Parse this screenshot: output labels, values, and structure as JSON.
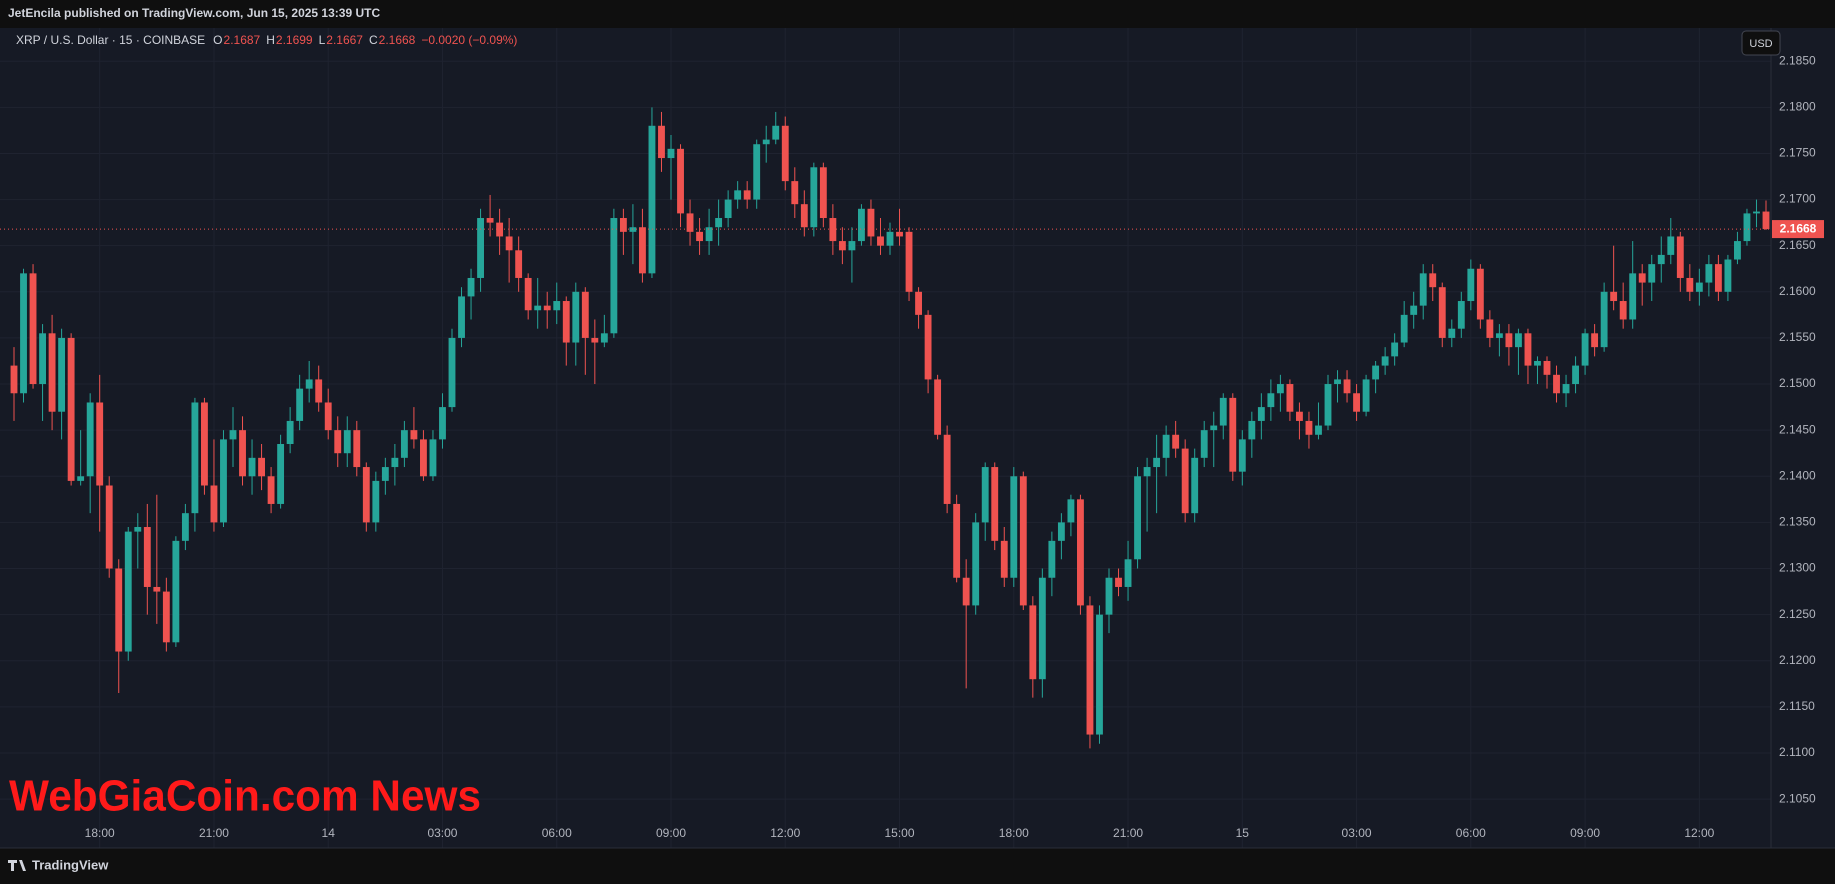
{
  "header": {
    "publisher": "JetEncila published on TradingView.com, Jun 15, 2025 13:39 UTC",
    "brand": "TradingView",
    "currency": "USD",
    "watermark": "WebGiaCoin.com News"
  },
  "chart_data": {
    "type": "candlestick",
    "symbol": "XRP / U.S. Dollar · 15 · COINBASE",
    "ohlc_letters": [
      "O",
      "H",
      "L",
      "C"
    ],
    "change": "−0.0020 (−0.09%)",
    "up_color": "#26a69a",
    "down_color": "#ef5350",
    "grid": true,
    "ylim": [
      2.0997,
      2.1886
    ],
    "yticks": [
      {
        "value": 2.105,
        "label": "2.1050"
      },
      {
        "value": 2.11,
        "label": "2.1100"
      },
      {
        "value": 2.115,
        "label": "2.1150"
      },
      {
        "value": 2.12,
        "label": "2.1200"
      },
      {
        "value": 2.125,
        "label": "2.1250"
      },
      {
        "value": 2.13,
        "label": "2.1300"
      },
      {
        "value": 2.135,
        "label": "2.1350"
      },
      {
        "value": 2.14,
        "label": "2.1400"
      },
      {
        "value": 2.145,
        "label": "2.1450"
      },
      {
        "value": 2.15,
        "label": "2.1500"
      },
      {
        "value": 2.155,
        "label": "2.1550"
      },
      {
        "value": 2.16,
        "label": "2.1600"
      },
      {
        "value": 2.165,
        "label": "2.1650"
      },
      {
        "value": 2.17,
        "label": "2.1700"
      },
      {
        "value": 2.175,
        "label": "2.1750"
      },
      {
        "value": 2.18,
        "label": "2.1800"
      },
      {
        "value": 2.185,
        "label": "2.1850"
      }
    ],
    "categories": [
      null,
      null,
      null,
      null,
      null,
      null,
      null,
      null,
      null,
      "18:00",
      null,
      null,
      null,
      null,
      null,
      null,
      null,
      null,
      null,
      null,
      null,
      "21:00",
      null,
      null,
      null,
      null,
      null,
      null,
      null,
      null,
      null,
      null,
      null,
      "14",
      null,
      null,
      null,
      null,
      null,
      null,
      null,
      null,
      null,
      null,
      null,
      "03:00",
      null,
      null,
      null,
      null,
      null,
      null,
      null,
      null,
      null,
      null,
      null,
      "06:00",
      null,
      null,
      null,
      null,
      null,
      null,
      null,
      null,
      null,
      null,
      null,
      "09:00",
      null,
      null,
      null,
      null,
      null,
      null,
      null,
      null,
      null,
      null,
      null,
      "12:00",
      null,
      null,
      null,
      null,
      null,
      null,
      null,
      null,
      null,
      null,
      null,
      "15:00",
      null,
      null,
      null,
      null,
      null,
      null,
      null,
      null,
      null,
      null,
      null,
      "18:00",
      null,
      null,
      null,
      null,
      null,
      null,
      null,
      null,
      null,
      null,
      null,
      "21:00",
      null,
      null,
      null,
      null,
      null,
      null,
      null,
      null,
      null,
      null,
      null,
      "15",
      null,
      null,
      null,
      null,
      null,
      null,
      null,
      null,
      null,
      null,
      null,
      "03:00",
      null,
      null,
      null,
      null,
      null,
      null,
      null,
      null,
      null,
      null,
      null,
      "06:00",
      null,
      null,
      null,
      null,
      null,
      null,
      null,
      null,
      null,
      null,
      null,
      "09:00",
      null,
      null,
      null,
      null,
      null,
      null,
      null,
      null,
      null,
      null,
      null,
      "12:00",
      null,
      null,
      null,
      null,
      null,
      null,
      null
    ],
    "ohlc": [
      [
        2.152,
        2.154,
        2.146,
        2.149
      ],
      [
        2.149,
        2.1625,
        2.148,
        2.162
      ],
      [
        2.162,
        2.163,
        2.1495,
        2.15
      ],
      [
        2.15,
        2.1565,
        2.146,
        2.1555
      ],
      [
        2.1555,
        2.1575,
        2.145,
        2.147
      ],
      [
        2.147,
        2.156,
        2.144,
        2.155
      ],
      [
        2.155,
        2.1555,
        2.139,
        2.1395
      ],
      [
        2.1395,
        2.145,
        2.139,
        2.14
      ],
      [
        2.14,
        2.149,
        2.136,
        2.148
      ],
      [
        2.148,
        2.151,
        2.134,
        2.139
      ],
      [
        2.139,
        2.14,
        2.129,
        2.13
      ],
      [
        2.13,
        2.131,
        2.1165,
        2.121
      ],
      [
        2.121,
        2.1345,
        2.12,
        2.134
      ],
      [
        2.134,
        2.136,
        2.13,
        2.1345
      ],
      [
        2.1345,
        2.137,
        2.125,
        2.128
      ],
      [
        2.128,
        2.138,
        2.124,
        2.1275
      ],
      [
        2.1275,
        2.129,
        2.121,
        2.122
      ],
      [
        2.122,
        2.1335,
        2.1215,
        2.133
      ],
      [
        2.133,
        2.137,
        2.132,
        2.136
      ],
      [
        2.136,
        2.1485,
        2.134,
        2.148
      ],
      [
        2.148,
        2.1485,
        2.138,
        2.139
      ],
      [
        2.139,
        2.144,
        2.134,
        2.135
      ],
      [
        2.135,
        2.145,
        2.1345,
        2.144
      ],
      [
        2.144,
        2.1475,
        2.141,
        2.145
      ],
      [
        2.145,
        2.1465,
        2.139,
        2.14
      ],
      [
        2.14,
        2.144,
        2.138,
        2.142
      ],
      [
        2.142,
        2.1435,
        2.1385,
        2.14
      ],
      [
        2.14,
        2.141,
        2.136,
        2.137
      ],
      [
        2.137,
        2.1445,
        2.1365,
        2.1435
      ],
      [
        2.1435,
        2.1475,
        2.1425,
        2.146
      ],
      [
        2.146,
        2.151,
        2.145,
        2.1495
      ],
      [
        2.1495,
        2.1525,
        2.148,
        2.1505
      ],
      [
        2.1505,
        2.152,
        2.147,
        2.148
      ],
      [
        2.148,
        2.1495,
        2.144,
        2.145
      ],
      [
        2.145,
        2.1465,
        2.141,
        2.1425
      ],
      [
        2.1425,
        2.1465,
        2.141,
        2.145
      ],
      [
        2.145,
        2.146,
        2.14,
        2.141
      ],
      [
        2.141,
        2.1415,
        2.134,
        2.135
      ],
      [
        2.135,
        2.1405,
        2.134,
        2.1395
      ],
      [
        2.1395,
        2.142,
        2.138,
        2.141
      ],
      [
        2.141,
        2.1435,
        2.139,
        2.142
      ],
      [
        2.142,
        2.146,
        2.141,
        2.145
      ],
      [
        2.145,
        2.1475,
        2.143,
        2.144
      ],
      [
        2.144,
        2.145,
        2.1395,
        2.14
      ],
      [
        2.14,
        2.145,
        2.1395,
        2.144
      ],
      [
        2.144,
        2.149,
        2.143,
        2.1475
      ],
      [
        2.1475,
        2.156,
        2.147,
        2.155
      ],
      [
        2.155,
        2.1605,
        2.154,
        2.1595
      ],
      [
        2.1595,
        2.1625,
        2.157,
        2.1615
      ],
      [
        2.1615,
        2.169,
        2.16,
        2.168
      ],
      [
        2.168,
        2.1705,
        2.166,
        2.1675
      ],
      [
        2.1675,
        2.169,
        2.164,
        2.166
      ],
      [
        2.166,
        2.168,
        2.161,
        2.1645
      ],
      [
        2.1645,
        2.166,
        2.16,
        2.1615
      ],
      [
        2.1615,
        2.162,
        2.157,
        2.158
      ],
      [
        2.158,
        2.1615,
        2.156,
        2.1585
      ],
      [
        2.1585,
        2.16,
        2.156,
        2.158
      ],
      [
        2.158,
        2.161,
        2.1565,
        2.159
      ],
      [
        2.159,
        2.1595,
        2.152,
        2.1545
      ],
      [
        2.1545,
        2.161,
        2.152,
        2.16
      ],
      [
        2.16,
        2.1605,
        2.151,
        2.155
      ],
      [
        2.155,
        2.157,
        2.15,
        2.1545
      ],
      [
        2.1545,
        2.1575,
        2.154,
        2.1555
      ],
      [
        2.1555,
        2.169,
        2.155,
        2.168
      ],
      [
        2.168,
        2.169,
        2.164,
        2.1665
      ],
      [
        2.1665,
        2.1695,
        2.163,
        2.167
      ],
      [
        2.167,
        2.169,
        2.161,
        2.162
      ],
      [
        2.162,
        2.18,
        2.1615,
        2.178
      ],
      [
        2.178,
        2.1795,
        2.173,
        2.1745
      ],
      [
        2.1745,
        2.177,
        2.17,
        2.1755
      ],
      [
        2.1755,
        2.176,
        2.167,
        2.1685
      ],
      [
        2.1685,
        2.17,
        2.165,
        2.1665
      ],
      [
        2.1665,
        2.168,
        2.164,
        2.1655
      ],
      [
        2.1655,
        2.169,
        2.164,
        2.167
      ],
      [
        2.167,
        2.17,
        2.165,
        2.168
      ],
      [
        2.168,
        2.171,
        2.167,
        2.17
      ],
      [
        2.17,
        2.172,
        2.169,
        2.171
      ],
      [
        2.171,
        2.172,
        2.169,
        2.17
      ],
      [
        2.17,
        2.1765,
        2.169,
        2.176
      ],
      [
        2.176,
        2.178,
        2.174,
        2.1765
      ],
      [
        2.1765,
        2.1795,
        2.176,
        2.178
      ],
      [
        2.178,
        2.179,
        2.171,
        2.172
      ],
      [
        2.172,
        2.1735,
        2.168,
        2.1695
      ],
      [
        2.1695,
        2.171,
        2.166,
        2.167
      ],
      [
        2.167,
        2.174,
        2.166,
        2.1735
      ],
      [
        2.1735,
        2.174,
        2.167,
        2.168
      ],
      [
        2.168,
        2.1695,
        2.164,
        2.1655
      ],
      [
        2.1655,
        2.167,
        2.163,
        2.1645
      ],
      [
        2.1645,
        2.167,
        2.161,
        2.1655
      ],
      [
        2.1655,
        2.1695,
        2.165,
        2.169
      ],
      [
        2.169,
        2.17,
        2.165,
        2.166
      ],
      [
        2.166,
        2.168,
        2.164,
        2.165
      ],
      [
        2.165,
        2.1675,
        2.164,
        2.1665
      ],
      [
        2.1665,
        2.169,
        2.165,
        2.166
      ],
      [
        2.1665,
        2.167,
        2.159,
        2.16
      ],
      [
        2.16,
        2.1605,
        2.156,
        2.1575
      ],
      [
        2.1575,
        2.158,
        2.149,
        2.1505
      ],
      [
        2.1505,
        2.151,
        2.144,
        2.1445
      ],
      [
        2.1445,
        2.1455,
        2.136,
        2.137
      ],
      [
        2.137,
        2.138,
        2.1285,
        2.129
      ],
      [
        2.129,
        2.131,
        2.117,
        2.126
      ],
      [
        2.126,
        2.136,
        2.125,
        2.135
      ],
      [
        2.135,
        2.1415,
        2.133,
        2.141
      ],
      [
        2.141,
        2.1415,
        2.132,
        2.133
      ],
      [
        2.133,
        2.1345,
        2.128,
        2.129
      ],
      [
        2.129,
        2.141,
        2.128,
        2.14
      ],
      [
        2.14,
        2.1405,
        2.1255,
        2.126
      ],
      [
        2.126,
        2.127,
        2.116,
        2.118
      ],
      [
        2.118,
        2.13,
        2.116,
        2.129
      ],
      [
        2.129,
        2.134,
        2.127,
        2.133
      ],
      [
        2.133,
        2.136,
        2.131,
        2.135
      ],
      [
        2.135,
        2.138,
        2.1335,
        2.1375
      ],
      [
        2.1375,
        2.138,
        2.125,
        2.126
      ],
      [
        2.126,
        2.127,
        2.1105,
        2.112
      ],
      [
        2.112,
        2.126,
        2.111,
        2.125
      ],
      [
        2.125,
        2.13,
        2.123,
        2.129
      ],
      [
        2.129,
        2.13,
        2.127,
        2.128
      ],
      [
        2.128,
        2.133,
        2.1265,
        2.131
      ],
      [
        2.131,
        2.141,
        2.13,
        2.14
      ],
      [
        2.14,
        2.142,
        2.134,
        2.141
      ],
      [
        2.141,
        2.1445,
        2.136,
        2.142
      ],
      [
        2.142,
        2.1455,
        2.14,
        2.1445
      ],
      [
        2.1445,
        2.146,
        2.142,
        2.143
      ],
      [
        2.143,
        2.144,
        2.135,
        2.136
      ],
      [
        2.136,
        2.143,
        2.135,
        2.142
      ],
      [
        2.142,
        2.146,
        2.141,
        2.145
      ],
      [
        2.145,
        2.147,
        2.141,
        2.1455
      ],
      [
        2.1455,
        2.149,
        2.144,
        2.1485
      ],
      [
        2.1485,
        2.149,
        2.1395,
        2.1405
      ],
      [
        2.1405,
        2.145,
        2.139,
        2.144
      ],
      [
        2.144,
        2.147,
        2.142,
        2.146
      ],
      [
        2.146,
        2.149,
        2.144,
        2.1475
      ],
      [
        2.1475,
        2.1505,
        2.146,
        2.149
      ],
      [
        2.149,
        2.151,
        2.147,
        2.15
      ],
      [
        2.15,
        2.1505,
        2.146,
        2.147
      ],
      [
        2.147,
        2.148,
        2.144,
        2.146
      ],
      [
        2.146,
        2.147,
        2.143,
        2.1445
      ],
      [
        2.1445,
        2.148,
        2.144,
        2.1455
      ],
      [
        2.1455,
        2.151,
        2.145,
        2.15
      ],
      [
        2.15,
        2.1515,
        2.148,
        2.1505
      ],
      [
        2.1505,
        2.1515,
        2.148,
        2.149
      ],
      [
        2.149,
        2.15,
        2.146,
        2.147
      ],
      [
        2.147,
        2.151,
        2.1465,
        2.1505
      ],
      [
        2.1505,
        2.1525,
        2.149,
        2.152
      ],
      [
        2.152,
        2.154,
        2.151,
        2.153
      ],
      [
        2.153,
        2.1555,
        2.152,
        2.1545
      ],
      [
        2.1545,
        2.159,
        2.154,
        2.1575
      ],
      [
        2.1575,
        2.16,
        2.156,
        2.1585
      ],
      [
        2.1585,
        2.163,
        2.157,
        2.162
      ],
      [
        2.162,
        2.163,
        2.159,
        2.1605
      ],
      [
        2.1605,
        2.161,
        2.154,
        2.155
      ],
      [
        2.155,
        2.157,
        2.154,
        2.156
      ],
      [
        2.156,
        2.16,
        2.155,
        2.159
      ],
      [
        2.159,
        2.1635,
        2.158,
        2.1625
      ],
      [
        2.1625,
        2.163,
        2.156,
        2.157
      ],
      [
        2.157,
        2.158,
        2.154,
        2.155
      ],
      [
        2.155,
        2.1565,
        2.153,
        2.1555
      ],
      [
        2.1555,
        2.1565,
        2.152,
        2.154
      ],
      [
        2.154,
        2.156,
        2.151,
        2.1555
      ],
      [
        2.1555,
        2.156,
        2.15,
        2.152
      ],
      [
        2.152,
        2.153,
        2.15,
        2.1525
      ],
      [
        2.1525,
        2.153,
        2.1495,
        2.151
      ],
      [
        2.151,
        2.152,
        2.148,
        2.149
      ],
      [
        2.149,
        2.151,
        2.1475,
        2.15
      ],
      [
        2.15,
        2.153,
        2.149,
        2.152
      ],
      [
        2.152,
        2.156,
        2.151,
        2.1555
      ],
      [
        2.1555,
        2.1565,
        2.153,
        2.154
      ],
      [
        2.154,
        2.161,
        2.1535,
        2.16
      ],
      [
        2.16,
        2.165,
        2.158,
        2.159
      ],
      [
        2.159,
        2.161,
        2.156,
        2.157
      ],
      [
        2.157,
        2.1655,
        2.156,
        2.162
      ],
      [
        2.162,
        2.163,
        2.1585,
        2.161
      ],
      [
        2.161,
        2.164,
        2.159,
        2.163
      ],
      [
        2.163,
        2.166,
        2.161,
        2.164
      ],
      [
        2.164,
        2.168,
        2.163,
        2.166
      ],
      [
        2.166,
        2.1665,
        2.16,
        2.1615
      ],
      [
        2.1615,
        2.163,
        2.159,
        2.16
      ],
      [
        2.16,
        2.1625,
        2.1585,
        2.161
      ],
      [
        2.161,
        2.164,
        2.1595,
        2.163
      ],
      [
        2.163,
        2.164,
        2.159,
        2.16
      ],
      [
        2.16,
        2.164,
        2.159,
        2.1635
      ],
      [
        2.1635,
        2.1665,
        2.163,
        2.1655
      ],
      [
        2.1655,
        2.169,
        2.165,
        2.1685
      ],
      [
        2.1685,
        2.17,
        2.167,
        2.1687
      ],
      [
        2.1687,
        2.1699,
        2.1667,
        2.1668
      ]
    ]
  }
}
